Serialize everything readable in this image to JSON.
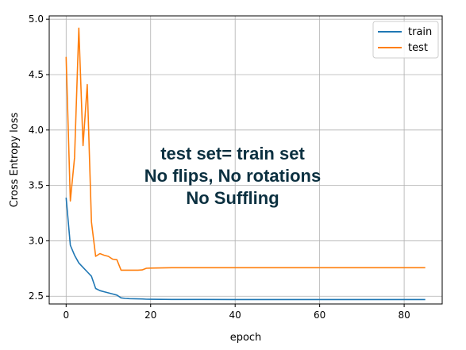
{
  "chart_data": {
    "type": "line",
    "xlabel": "epoch",
    "ylabel": "Cross Entropy loss",
    "xlim": [
      -4,
      89
    ],
    "ylim": [
      2.43,
      5.03
    ],
    "xticks": [
      0,
      20,
      40,
      60,
      80
    ],
    "yticks": [
      2.5,
      3.0,
      3.5,
      4.0,
      4.5,
      5.0
    ],
    "xtick_labels": [
      "0",
      "20",
      "40",
      "60",
      "80"
    ],
    "ytick_labels": [
      "2.5",
      "3.0",
      "3.5",
      "4.0",
      "4.5",
      "5.0"
    ],
    "grid": true,
    "legend_position": "top-right",
    "annotation": [
      "test set= train set",
      "No flips, No rotations",
      "No Suffling"
    ],
    "series": [
      {
        "name": "train",
        "color": "#1f77b4",
        "x": [
          0,
          1,
          2,
          3,
          4,
          5,
          6,
          7,
          8,
          9,
          10,
          11,
          12,
          13,
          14,
          15,
          16,
          17,
          18,
          19,
          20,
          25,
          30,
          40,
          50,
          60,
          70,
          80,
          85
        ],
        "y": [
          3.39,
          2.96,
          2.87,
          2.8,
          2.76,
          2.72,
          2.68,
          2.57,
          2.55,
          2.54,
          2.53,
          2.52,
          2.51,
          2.485,
          2.48,
          2.478,
          2.477,
          2.476,
          2.475,
          2.473,
          2.472,
          2.471,
          2.471,
          2.47,
          2.47,
          2.47,
          2.47,
          2.47,
          2.47
        ]
      },
      {
        "name": "test",
        "color": "#ff7f0e",
        "x": [
          0,
          1,
          2,
          3,
          4,
          5,
          6,
          7,
          8,
          9,
          10,
          11,
          12,
          13,
          14,
          15,
          16,
          17,
          18,
          19,
          20,
          25,
          30,
          40,
          50,
          60,
          70,
          80,
          85
        ],
        "y": [
          4.66,
          3.36,
          3.75,
          4.92,
          3.86,
          4.41,
          3.17,
          2.86,
          2.885,
          2.87,
          2.86,
          2.835,
          2.83,
          2.735,
          2.735,
          2.735,
          2.735,
          2.735,
          2.737,
          2.752,
          2.754,
          2.757,
          2.757,
          2.757,
          2.757,
          2.757,
          2.757,
          2.757,
          2.757
        ]
      }
    ]
  }
}
